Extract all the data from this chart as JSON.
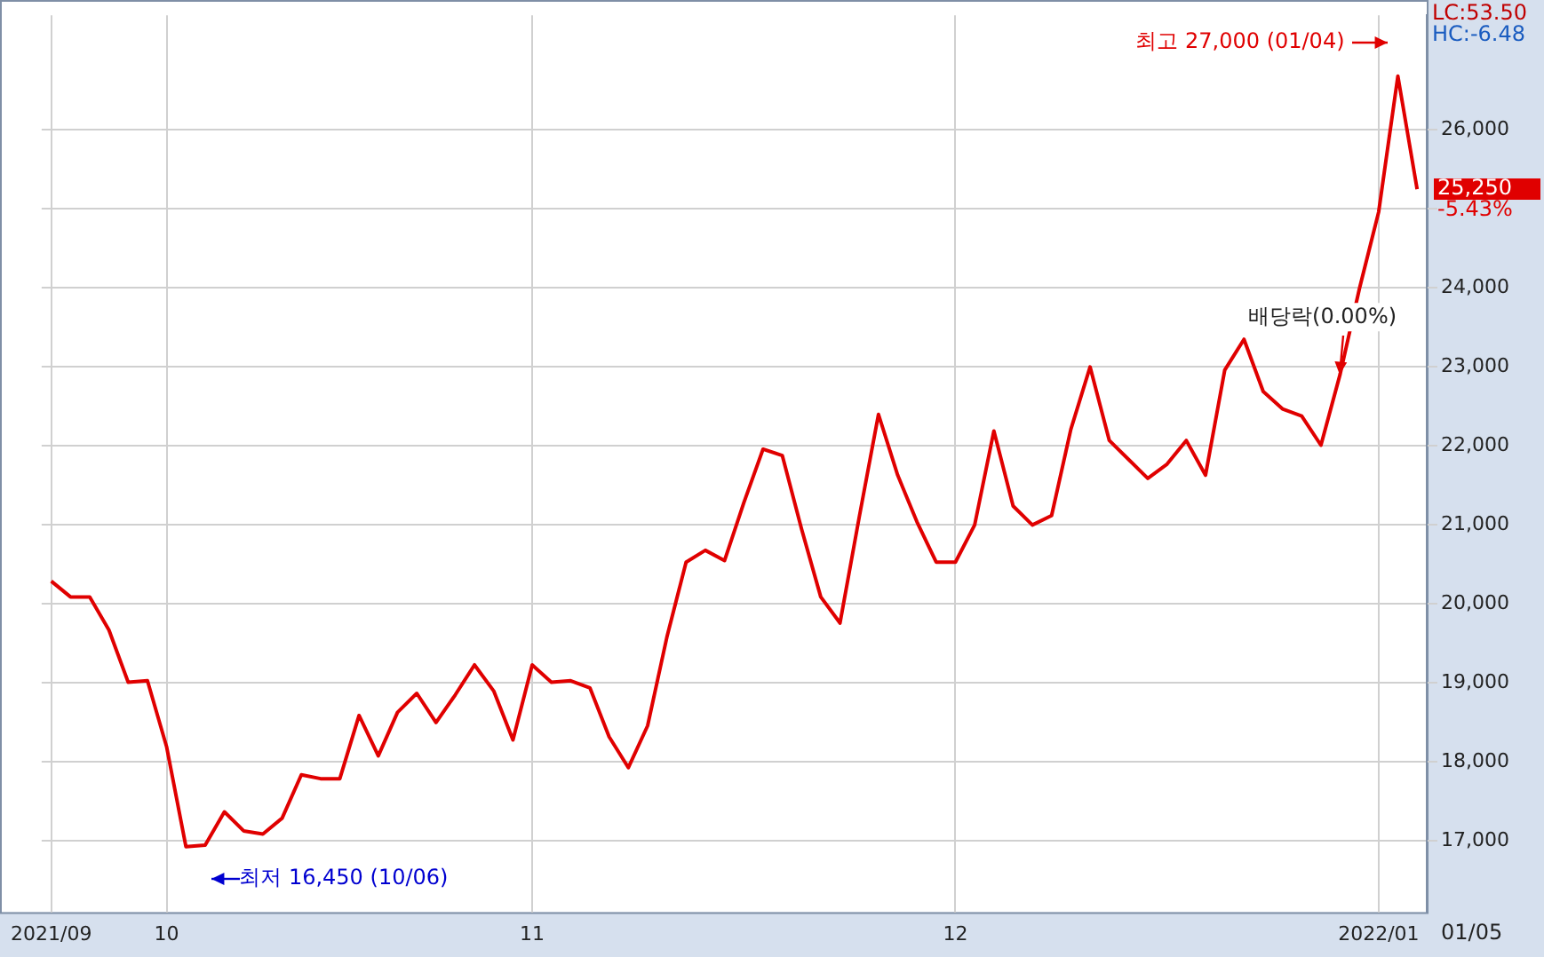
{
  "chart_data": {
    "type": "line",
    "categories": [
      "2021/09",
      null,
      null,
      null,
      null,
      null,
      "10",
      null,
      null,
      null,
      null,
      null,
      null,
      null,
      null,
      null,
      null,
      null,
      null,
      null,
      null,
      null,
      null,
      null,
      null,
      "11",
      null,
      null,
      null,
      null,
      null,
      null,
      null,
      null,
      null,
      null,
      null,
      null,
      null,
      null,
      null,
      null,
      null,
      null,
      null,
      null,
      null,
      "12",
      null,
      null,
      null,
      null,
      null,
      null,
      null,
      null,
      null,
      null,
      null,
      null,
      null,
      null,
      null,
      null,
      null,
      null,
      null,
      null,
      null,
      "2022/01",
      null,
      null
    ],
    "series": [
      {
        "color": "#e00000",
        "values": [
          20290,
          20090,
          20090,
          19670,
          19010,
          19030,
          18190,
          16930,
          16950,
          17370,
          17130,
          17090,
          17290,
          17840,
          17790,
          17790,
          18590,
          18080,
          18630,
          18870,
          18500,
          18850,
          19230,
          18900,
          18280,
          19230,
          19010,
          19030,
          18940,
          18320,
          17930,
          18460,
          19580,
          20530,
          20680,
          20550,
          21280,
          21960,
          21880,
          20950,
          20090,
          19760,
          21100,
          22400,
          21630,
          21040,
          20530,
          20530,
          21000,
          22190,
          21240,
          21000,
          21120,
          22210,
          23000,
          22070,
          21830,
          21590,
          21770,
          22070,
          21630,
          22960,
          23350,
          22690,
          22470,
          22380,
          22010,
          22910,
          23990,
          24960,
          26680,
          25250
        ]
      }
    ],
    "ylim": [
      16100,
      27450
    ],
    "yticks": [
      {
        "value": 17000,
        "label": "17,000"
      },
      {
        "value": 18000,
        "label": "18,000"
      },
      {
        "value": 19000,
        "label": "19,000"
      },
      {
        "value": 20000,
        "label": "20,000"
      },
      {
        "value": 21000,
        "label": "21,000"
      },
      {
        "value": 22000,
        "label": "22,000"
      },
      {
        "value": 23000,
        "label": "23,000"
      },
      {
        "value": 24000,
        "label": "24,000"
      },
      {
        "value": 25000,
        "label": null
      },
      {
        "value": 26000,
        "label": "26,000"
      }
    ],
    "grid": true,
    "marker": "none",
    "line_style": "solid",
    "annotations": [
      "최고 27,000 (01/04)",
      "최저 16,450 (10/06)",
      "배당락(0.00%)",
      "LC:53.50",
      "HC:-6.48",
      "25,250",
      "-5.43%",
      "01/05"
    ]
  }
}
